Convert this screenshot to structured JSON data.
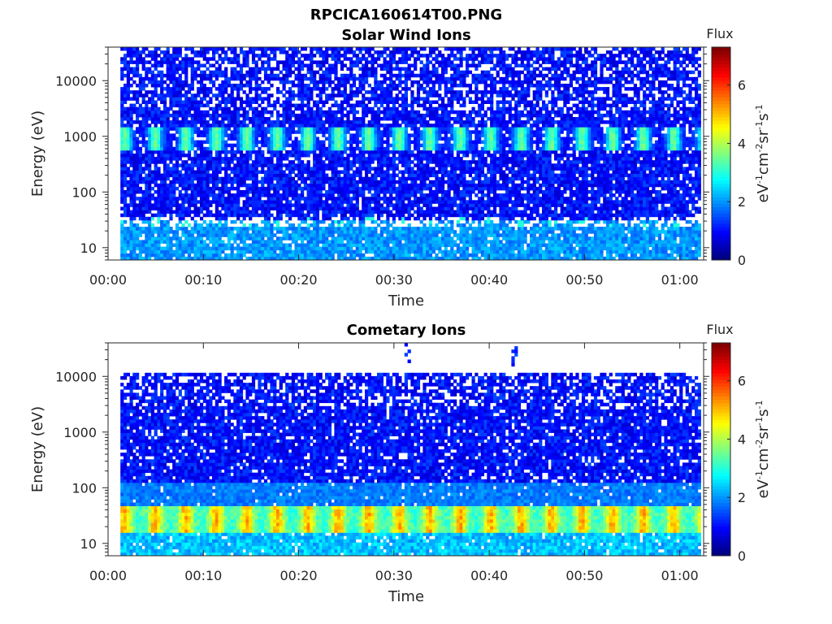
{
  "figure": {
    "title": "RPCICA160614T00.PNG"
  },
  "colorbar": {
    "title": "Flux",
    "ticks": [
      "0",
      "2",
      "4",
      "6"
    ],
    "tick_values": [
      0,
      2,
      4,
      6
    ],
    "range": [
      0,
      7.3
    ],
    "unit_parts": {
      "a": "eV",
      "a_exp": "-1",
      "b": "cm",
      "b_exp": "-2",
      "c": "sr",
      "c_exp": "-1",
      "d": "s",
      "d_exp": "-1"
    },
    "colormap": "jet"
  },
  "chart_data": [
    {
      "type": "heatmap",
      "title": "Solar Wind Ions",
      "xlabel": "Time",
      "ylabel": "Energy (eV)",
      "yscale": "log",
      "ylim": [
        6,
        40000
      ],
      "yticks": [
        10,
        100,
        1000,
        10000
      ],
      "ytick_labels": [
        "10",
        "100",
        "1000",
        "10000"
      ],
      "xlim_minutes": [
        0,
        62.5
      ],
      "data_x_range_minutes": [
        1.3,
        62.2
      ],
      "xticks": [
        "00:00",
        "00:10",
        "00:20",
        "00:30",
        "00:40",
        "00:50",
        "01:00"
      ],
      "xtick_minutes": [
        0,
        10,
        20,
        30,
        40,
        50,
        60
      ],
      "features": {
        "background_flux": 1.0,
        "low_energy_band_eV": [
          6,
          30
        ],
        "low_energy_flux": 2.0,
        "peak_band_eV": [
          600,
          1400
        ],
        "peak_flux": 3.5,
        "peak_period_minutes": 3.2,
        "secondary_band_eV": [
          25,
          35
        ],
        "secondary_flux": 3.0
      }
    },
    {
      "type": "heatmap",
      "title": "Cometary Ions",
      "xlabel": "Time",
      "ylabel": "Energy (eV)",
      "yscale": "log",
      "ylim": [
        6,
        40000
      ],
      "yticks": [
        10,
        100,
        1000,
        10000
      ],
      "ytick_labels": [
        "10",
        "100",
        "1000",
        "10000"
      ],
      "xlim_minutes": [
        0,
        62.5
      ],
      "data_x_range_minutes": [
        1.3,
        62.2
      ],
      "data_y_max_eV": 11000,
      "xticks": [
        "00:00",
        "00:10",
        "00:20",
        "00:30",
        "00:40",
        "00:50",
        "01:00"
      ],
      "xtick_minutes": [
        0,
        10,
        20,
        30,
        40,
        50,
        60
      ],
      "features": {
        "background_flux": 1.0,
        "peak_band_eV": [
          15,
          45
        ],
        "peak_flux": 5.0,
        "peak_period_minutes": 3.2,
        "below_peak_flux": 2.3,
        "above_peak_flux": 1.8,
        "spike_times_minutes": [
          31.3,
          42.5
        ]
      }
    }
  ]
}
